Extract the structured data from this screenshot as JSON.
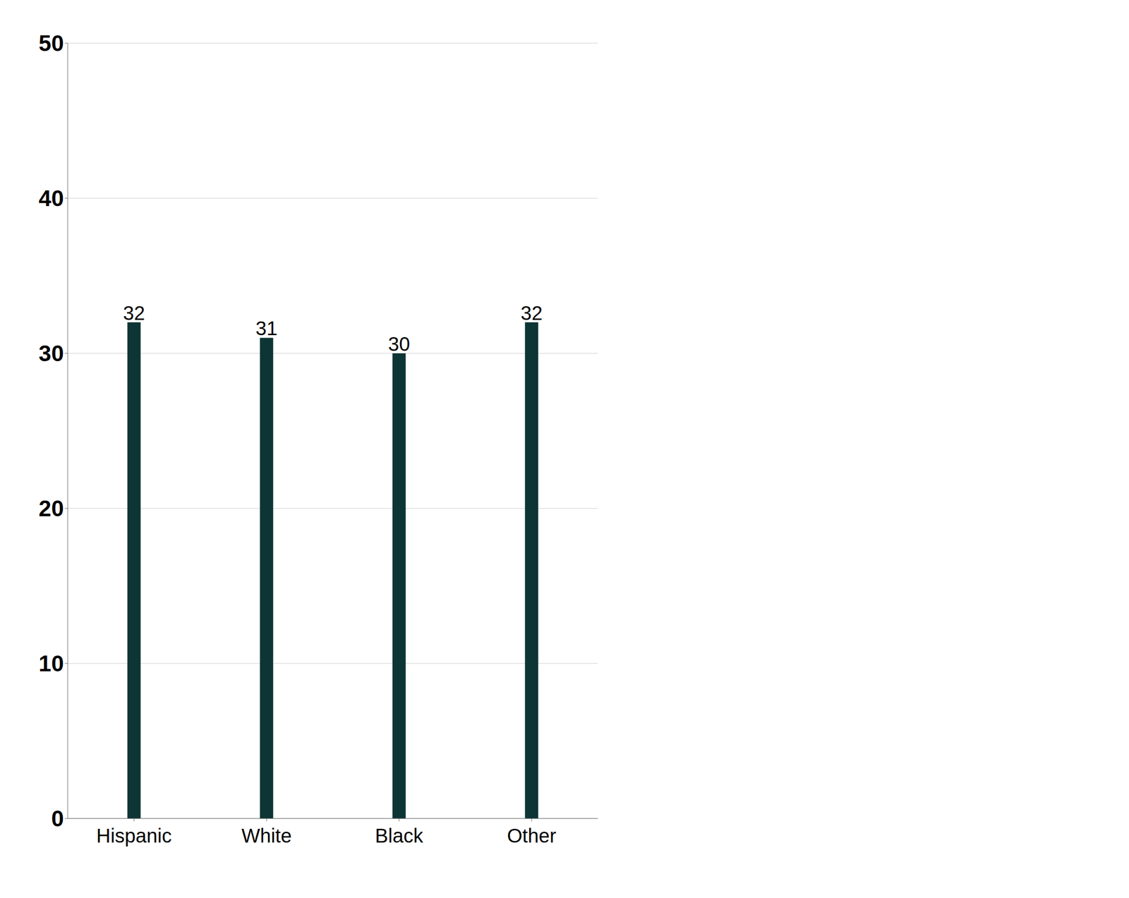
{
  "chart_data": {
    "type": "bar",
    "categories": [
      "Hispanic",
      "White",
      "Black",
      "Other"
    ],
    "values": [
      32,
      31,
      30,
      32
    ],
    "color": "#0d3535",
    "ylim": [
      0,
      50
    ],
    "yticks": [
      0,
      10,
      20,
      30,
      40,
      50
    ],
    "grid": true,
    "data_labels": true
  }
}
